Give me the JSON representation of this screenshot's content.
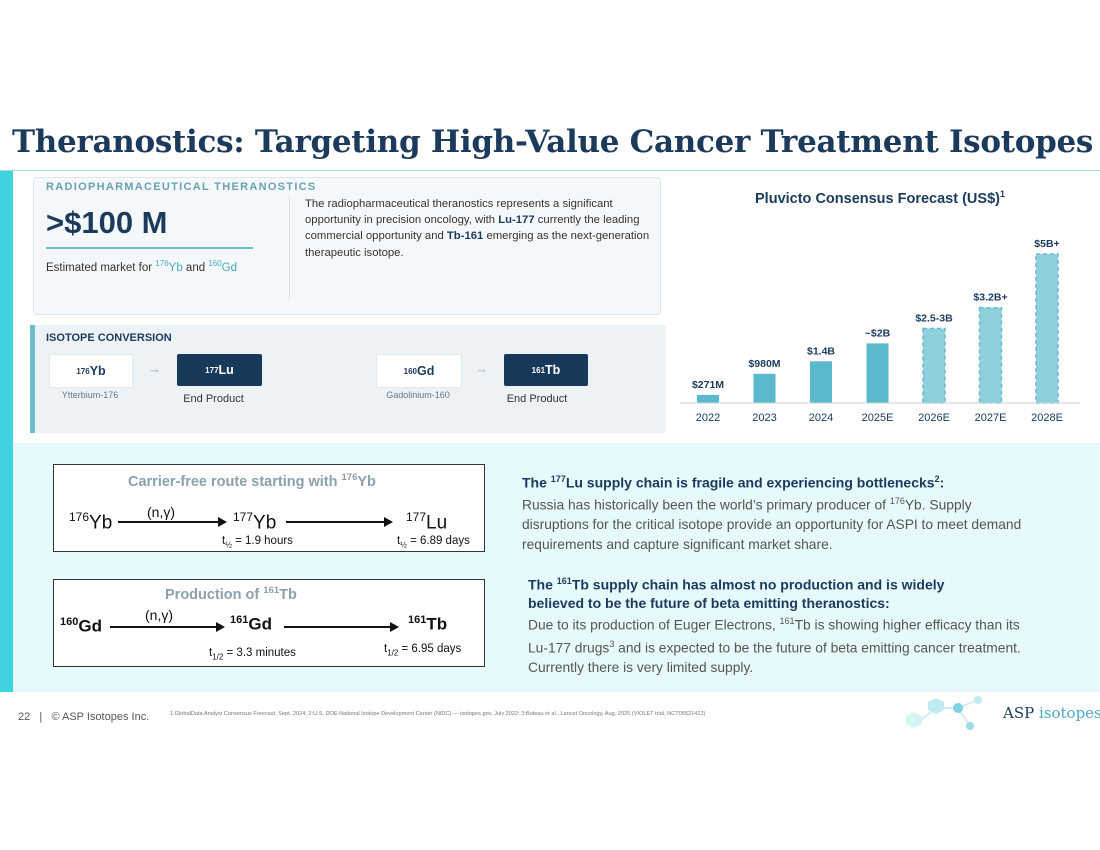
{
  "title": "Theranostics: Targeting High-Value Cancer Treatment Isotopes",
  "theranostics_card": {
    "label": "RADIOPHARMACEUTICAL THERANOSTICS",
    "big_value": ">$100 M",
    "sub_prefix": "Estimated market for ",
    "iso1_mass": "176",
    "iso1_symbol": "Yb",
    "sub_and": " and ",
    "iso2_mass": "160",
    "iso2_symbol": "Gd",
    "desc_1": "The radiopharmaceutical theranostics represents a significant opportunity in precision oncology, with ",
    "desc_lu": "Lu-177",
    "desc_2": " currently the leading commercial opportunity and ",
    "desc_tb": "Tb-161",
    "desc_3": " emerging as the next-generation therapeutic isotope."
  },
  "isotope_conversion": {
    "label": "ISOTOPE CONVERSION",
    "arrow": "→",
    "pairs": [
      {
        "from_mass": "176",
        "from_symbol": "Yb",
        "from_caption": "Ytterbium-176",
        "to_mass": "177",
        "to_symbol": "Lu",
        "to_caption": "End Product"
      },
      {
        "from_mass": "160",
        "from_symbol": "Gd",
        "from_caption": "Gadolinium-160",
        "to_mass": "161",
        "to_symbol": "Tb",
        "to_caption": "End Product"
      }
    ]
  },
  "chart_data": {
    "type": "bar",
    "title": "Pluvicto Consensus Forecast (US$)",
    "title_sup": "1",
    "categories": [
      "2022",
      "2023",
      "2024",
      "2025E",
      "2026E",
      "2027E",
      "2028E"
    ],
    "values": [
      0.271,
      0.98,
      1.4,
      2.0,
      2.5,
      3.2,
      5.0
    ],
    "labels": [
      "$271M",
      "$980M",
      "$1.4B",
      "~$2B",
      "$2.5-3B",
      "$3.2B+",
      "$5B+"
    ],
    "forecast_dashed": [
      false,
      false,
      false,
      false,
      true,
      true,
      true
    ],
    "ylim": [
      0,
      5.0
    ],
    "xlabel": "",
    "ylabel": "",
    "colors": {
      "actual": "#5bb9ce",
      "forecast": "#8fd0dd",
      "forecast_border": "#6bbccc"
    }
  },
  "reaction1": {
    "title": "Carrier-free route starting with ",
    "title_mass": "176",
    "title_symbol": "Yb",
    "start_mass": "176",
    "start_symbol": "Yb",
    "ng": "(n,γ)",
    "mid_mass": "177",
    "mid_symbol": "Yb",
    "end_mass": "177",
    "end_symbol": "Lu",
    "half1_t": "t",
    "half1_sub": "½",
    "half1_val": " = 1.9 hours",
    "half2_t": "t",
    "half2_sub": "½",
    "half2_val": " = 6.89 days"
  },
  "reaction2": {
    "title": "Production of ",
    "title_mass": "161",
    "title_symbol": "Tb",
    "start_mass": "160",
    "start_symbol": "Gd",
    "ng": "(n,γ)",
    "mid_mass": "161",
    "mid_symbol": "Gd",
    "end_mass": "161",
    "end_symbol": "Tb",
    "half1_t": "t",
    "half1_sub": "1/2",
    "half1_val": " = 3.3 minutes",
    "half2_t": "t",
    "half2_sub": "1/2",
    "half2_val": " = 6.95 days"
  },
  "supply_lu": {
    "head_1": "The ",
    "head_mass": "177",
    "head_2": "Lu supply chain is fragile and experiencing bottlenecks",
    "head_sup": "2",
    "head_3": ":",
    "body_1": "Russia has historically been the world’s primary producer of ",
    "body_mass": "176",
    "body_2": "Yb. Supply disruptions for the critical isotope provide an opportunity for ASPI to meet demand requirements and capture significant market share."
  },
  "supply_tb": {
    "head_1": "The ",
    "head_mass": "161",
    "head_2": "Tb supply chain has almost no production and is widely believed to be the future of beta emitting theranostics:",
    "body_1": "Due to its production of Euger Electrons, ",
    "body_mass": "161",
    "body_2": "Tb is showing higher efficacy than its Lu-177 drugs",
    "body_sup": "3",
    "body_3": " and is expected to be the future of beta emitting cancer treatment. Currently there is very limited supply."
  },
  "footer": {
    "page_number": "22",
    "separator": "|",
    "copyright": "© ASP Isotopes Inc.",
    "notes": "1:GlobalData Analyst Consensus Forecast, Sept. 2024; 2:U.S. DOE National Isotope Development Center (NIDC) — isotopes.gov, July 2022; 3:Buteau et al., Lancet Oncology, Aug. 2025 (VIOLET trial, NCT05521412)"
  },
  "logo": {
    "word1": "ASP",
    "word2": "isotopes"
  },
  "colors": {
    "navy": "#1b3a5c",
    "teal": "#3fd3df",
    "light_panel": "#e6f9fb"
  }
}
